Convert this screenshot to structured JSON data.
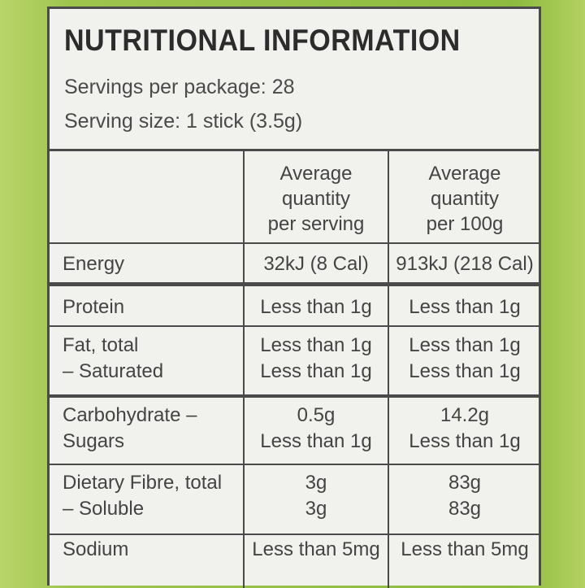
{
  "title": "NUTRITIONAL INFORMATION",
  "servings_per_package": "Servings per package: 28",
  "serving_size": "Serving size: 1 stick (3.5g)",
  "columns": {
    "per_serving": [
      "Average",
      "quantity",
      "per serving"
    ],
    "per_100g": [
      "Average",
      "quantity",
      "per 100g"
    ]
  },
  "rows": {
    "energy": {
      "label": "Energy",
      "per_serving": "32kJ (8 Cal)",
      "per_100g": "913kJ (218 Cal)"
    },
    "protein": {
      "label": "Protein",
      "per_serving": "Less than 1g",
      "per_100g": "Less than 1g"
    },
    "fat": {
      "label": "Fat, total",
      "per_serving": "Less than 1g",
      "per_100g": "Less than 1g"
    },
    "saturated": {
      "label": "– Saturated",
      "per_serving": "Less than 1g",
      "per_100g": "Less than 1g"
    },
    "carbohydrate": {
      "label": "Carbohydrate –",
      "per_serving": "0.5g",
      "per_100g": "14.2g"
    },
    "sugars": {
      "label": "Sugars",
      "per_serving": "Less than 1g",
      "per_100g": "Less than 1g"
    },
    "fibre": {
      "label": "Dietary Fibre, total",
      "per_serving": "3g",
      "per_100g": "83g"
    },
    "soluble": {
      "label": "– Soluble",
      "per_serving": "3g",
      "per_100g": "83g"
    },
    "sodium": {
      "label": "Sodium",
      "per_serving": "Less than 5mg",
      "per_100g": "Less than 5mg"
    }
  }
}
